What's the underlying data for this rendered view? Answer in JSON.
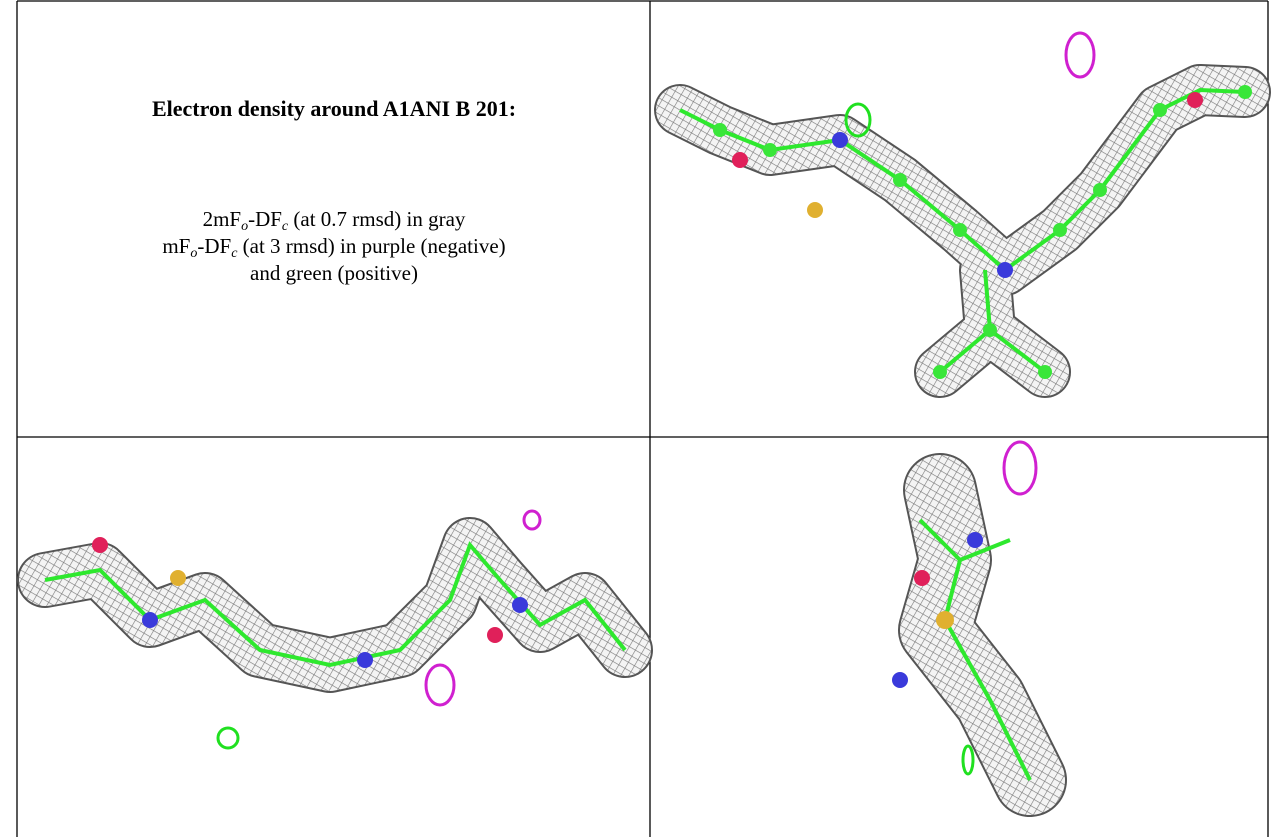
{
  "caption": {
    "title": "Electron density around A1ANI B 201:",
    "lines": [
      [
        "2mF",
        "o",
        "-DF",
        "c",
        " (at 0.7 rmsd) in gray"
      ],
      [
        "mF",
        "o",
        "-DF",
        "c",
        " (at 3 rmsd) in purple (negative)"
      ],
      [
        "and green (positive)"
      ]
    ]
  }
}
